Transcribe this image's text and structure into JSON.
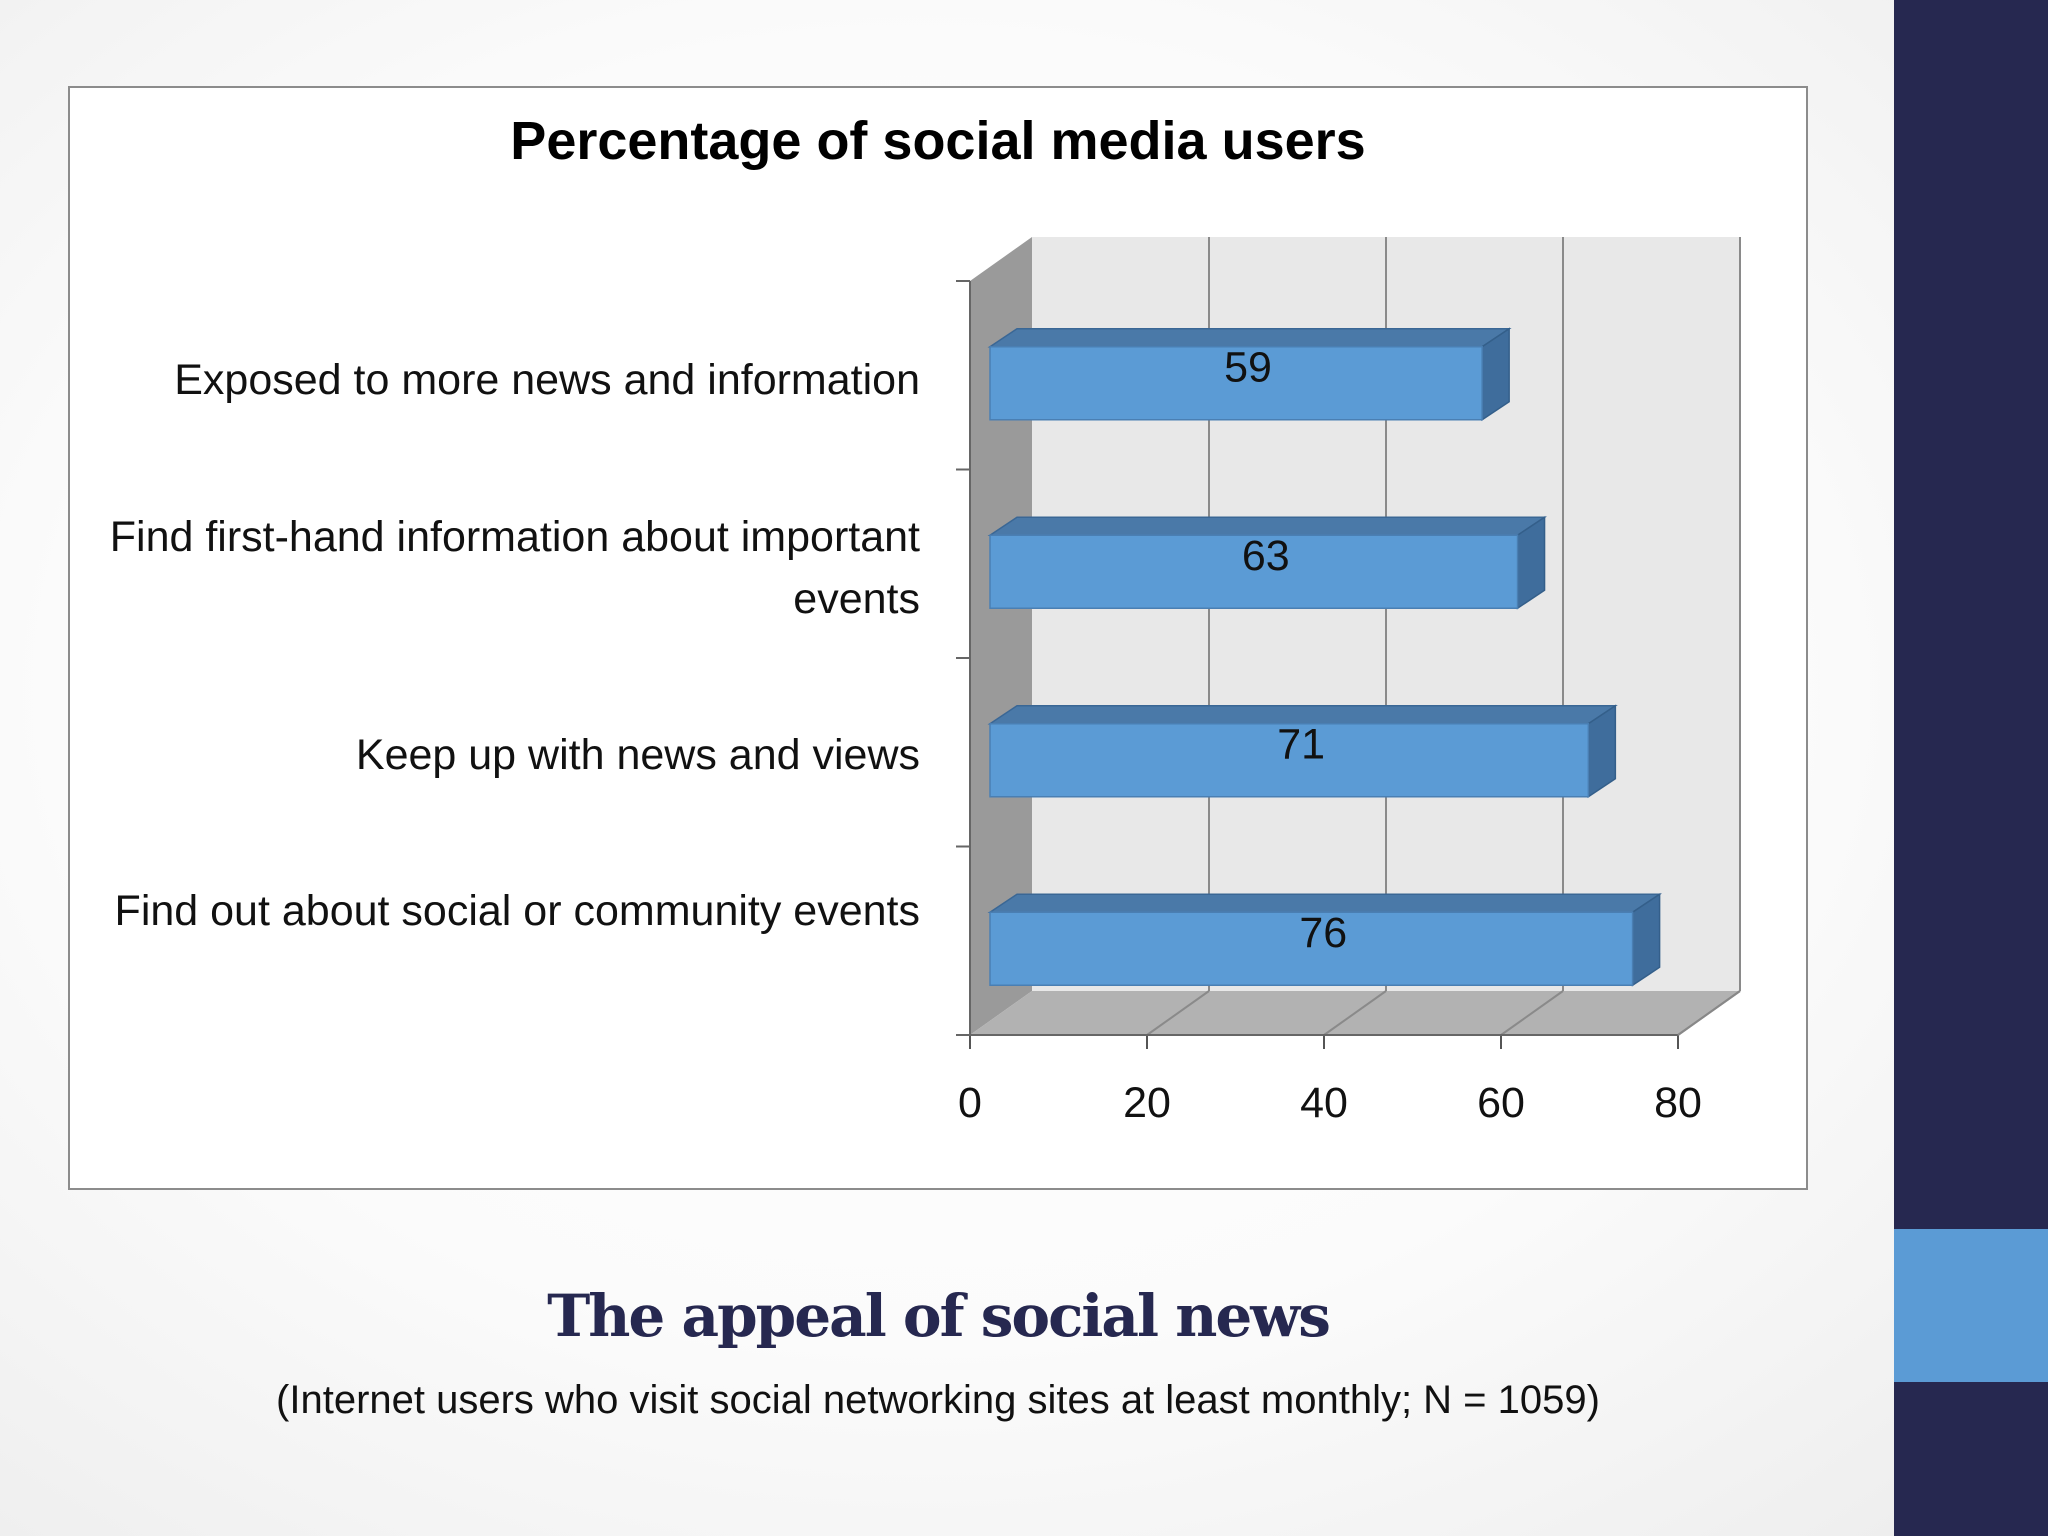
{
  "slide": {
    "heading": "The appeal of social news",
    "subheading": "(Internet users who visit social networking sites at least monthly; N = 1059)"
  },
  "chart_data": {
    "type": "bar",
    "orientation": "horizontal",
    "style": "3d",
    "title": "Percentage of social media users",
    "categories": [
      "Exposed to more news and information",
      "Find first-hand information about important events",
      "Keep up with news and views",
      "Find out about social or community events"
    ],
    "values": [
      59,
      63,
      71,
      76
    ],
    "xlim": [
      0,
      80
    ],
    "x_ticks": [
      "0",
      "20",
      "40",
      "60",
      "80"
    ],
    "xlabel": "",
    "ylabel": "",
    "grid": true,
    "legend": "none",
    "colors": {
      "bar_front": "#5b9bd5",
      "bar_top": "#4a79a8",
      "bar_side": "#3f6d9c",
      "back_wall": "#e8e8e8",
      "side_wall": "#9a9a9a",
      "floor": "#b2b2b2"
    }
  }
}
